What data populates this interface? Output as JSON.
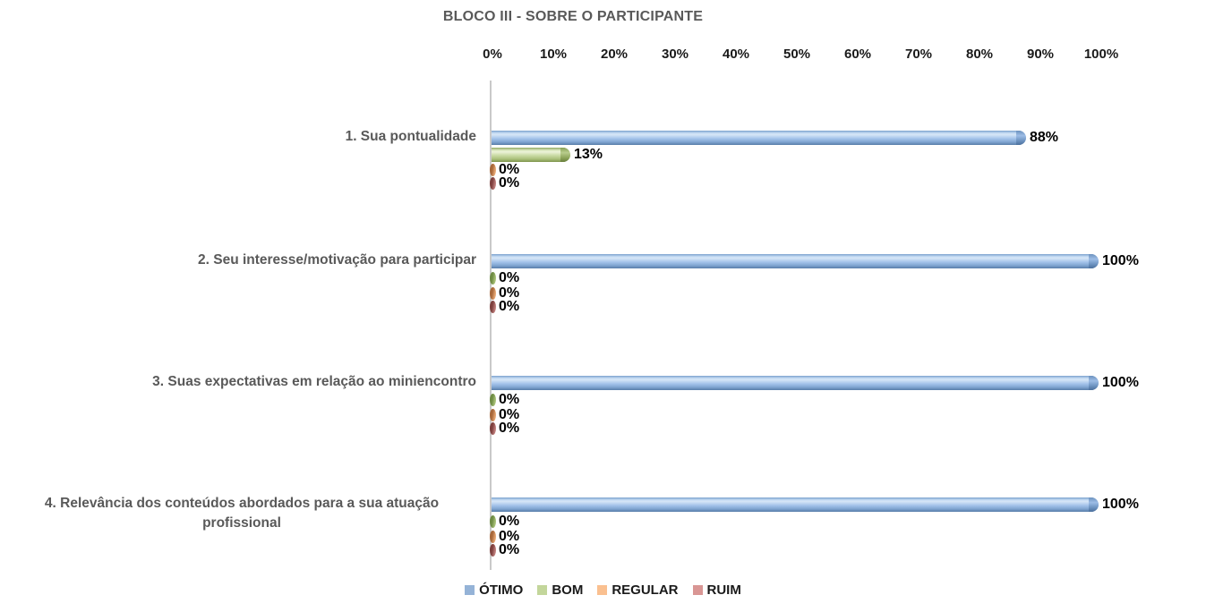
{
  "chart_data": {
    "type": "bar",
    "orientation": "horizontal",
    "title": "BLOCO III - SOBRE O PARTICIPANTE",
    "x_axis": {
      "position": "top",
      "min": 0,
      "max": 100,
      "tick_step": 10,
      "ticks": [
        "0%",
        "10%",
        "20%",
        "30%",
        "40%",
        "50%",
        "60%",
        "70%",
        "80%",
        "90%",
        "100%"
      ],
      "grid": false
    },
    "categories": [
      "1. Sua pontualidade",
      "2. Seu interesse/motivação para participar",
      "3. Suas expectativas em relação ao miniencontro",
      "4. Relevância dos conteúdos abordados para a sua atuação profissional"
    ],
    "series": [
      {
        "name": "ÓTIMO",
        "key": "otimo",
        "color": "#95B3D7",
        "values": [
          88,
          100,
          100,
          100
        ],
        "labels": [
          "88%",
          "100%",
          "100%",
          "100%"
        ]
      },
      {
        "name": "BOM",
        "key": "bom",
        "color": "#C3D69B",
        "values": [
          13,
          0,
          0,
          0
        ],
        "labels": [
          "13%",
          "0%",
          "0%",
          "0%"
        ]
      },
      {
        "name": "REGULAR",
        "key": "regular",
        "color": "#FAC090",
        "values": [
          0,
          0,
          0,
          0
        ],
        "labels": [
          "0%",
          "0%",
          "0%",
          "0%"
        ]
      },
      {
        "name": "RUIM",
        "key": "ruim",
        "color": "#D99694",
        "values": [
          0,
          0,
          0,
          0
        ],
        "labels": [
          "0%",
          "0%",
          "0%",
          "0%"
        ]
      }
    ],
    "legend": {
      "position": "bottom",
      "entries": [
        "ÓTIMO",
        "BOM",
        "REGULAR",
        "RUIM"
      ]
    },
    "value_label_format": "percent",
    "bar_style": "3d-cylinder"
  }
}
